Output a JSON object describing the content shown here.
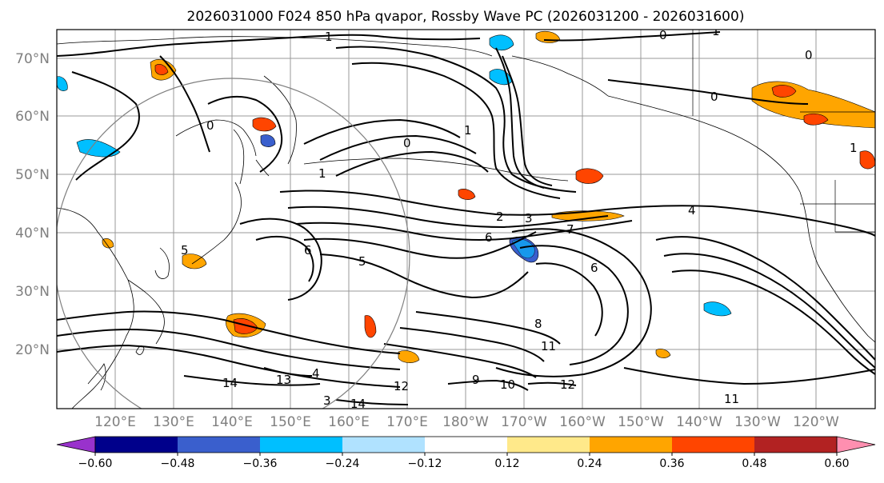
{
  "title": "2026031000 F024 850 hPa qvapor, Rossby Wave PC (2026031200 - 2026031600)",
  "latitude_labels": [
    "70°N",
    "60°N",
    "50°N",
    "40°N",
    "30°N",
    "20°N"
  ],
  "longitude_labels": [
    "120°E",
    "130°E",
    "140°E",
    "150°E",
    "160°E",
    "170°E",
    "180°W",
    "170°W",
    "160°W",
    "150°W",
    "140°W",
    "130°W",
    "120°W"
  ],
  "contour_labels": [
    "1",
    "0",
    "1",
    "0",
    "0",
    "0",
    "1",
    "1",
    "0",
    "1",
    "2",
    "3",
    "4",
    "5",
    "6",
    "7",
    "6",
    "5",
    "6",
    "8",
    "9",
    "11",
    "14",
    "13",
    "14",
    "11",
    "10",
    "12",
    "4",
    "3",
    "12"
  ],
  "colorbar": {
    "ticks": [
      "−0.60",
      "−0.48",
      "−0.36",
      "−0.24",
      "−0.12",
      "0.12",
      "0.24",
      "0.36",
      "0.48",
      "0.60"
    ],
    "colors": [
      "#9932cc",
      "#00008b",
      "#3a5fcd",
      "#00bfff",
      "#b0e2ff",
      "#ffffff",
      "#ffe98a",
      "#ffa500",
      "#ff4500",
      "#b22222",
      "#ff8fb0"
    ]
  },
  "map": {
    "projection": "cylindrical",
    "lat_range": [
      "~10°N",
      "75°N"
    ],
    "lon_range": [
      "110°E",
      "115°W"
    ],
    "gridlines": true,
    "coastlines": true,
    "field_shaded": "850 hPa qvapor Rossby Wave PC",
    "field_contoured": "850 hPa qvapor",
    "range_ring": true
  }
}
